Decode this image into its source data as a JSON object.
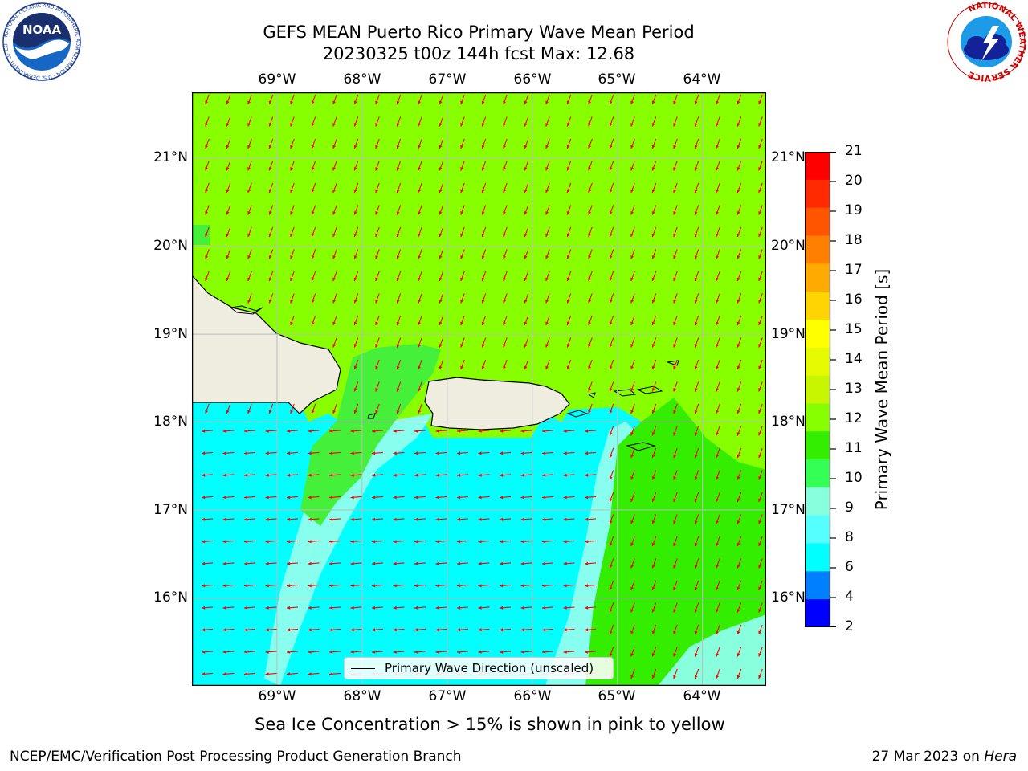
{
  "title": {
    "line1": "GEFS MEAN Puerto Rico Primary Wave Mean Period",
    "line2": "20230325 t00z 144h fcst   Max: 12.68"
  },
  "map": {
    "lon_labels": [
      "69°W",
      "68°W",
      "67°W",
      "66°W",
      "65°W",
      "64°W"
    ],
    "lat_labels": [
      "21°N",
      "20°N",
      "19°N",
      "18°N",
      "17°N",
      "16°N"
    ],
    "lon_range": [
      -70.0,
      -63.25
    ],
    "lat_range": [
      15.0,
      21.75
    ],
    "lon_ticks": [
      -69,
      -68,
      -67,
      -66,
      -65,
      -64
    ],
    "lat_ticks": [
      21,
      20,
      19,
      18,
      17,
      16
    ],
    "arrow_color": "#ff0000",
    "land_color": "#efede0",
    "gridlines": true
  },
  "colorbar": {
    "label": "Primary Wave Mean Period [s]",
    "ticks": [
      "21",
      "20",
      "19",
      "18",
      "17",
      "16",
      "15",
      "14",
      "13",
      "12",
      "11",
      "10",
      "9",
      "8",
      "6",
      "4",
      "2"
    ],
    "colors": [
      "#ff0000",
      "#ff2a00",
      "#ff5500",
      "#ff7f00",
      "#ffaa00",
      "#ffd400",
      "#ffff00",
      "#e6fb00",
      "#c8f500",
      "#88ff00",
      "#33ee00",
      "#33ff55",
      "#88ffdd",
      "#55ffff",
      "#00ffff",
      "#0080ff",
      "#0000ff"
    ]
  },
  "legend": {
    "label": "Primary Wave Direction (unscaled)"
  },
  "ice_note": "Sea Ice Concentration > 15% is shown in pink to yellow",
  "footer": {
    "left": "NCEP/EMC/Verification Post Processing Product Generation Branch",
    "date": "27 Mar 2023 on",
    "host": "Hera"
  },
  "logos": {
    "noaa_text": "NOAA",
    "noaa_ring": "NATIONAL OCEANIC AND ATMOSPHERIC ADMINISTRATION · U.S. DEPARTMENT OF COMMERCE",
    "nws_ring": "NATIONAL WEATHER SERVICE"
  }
}
